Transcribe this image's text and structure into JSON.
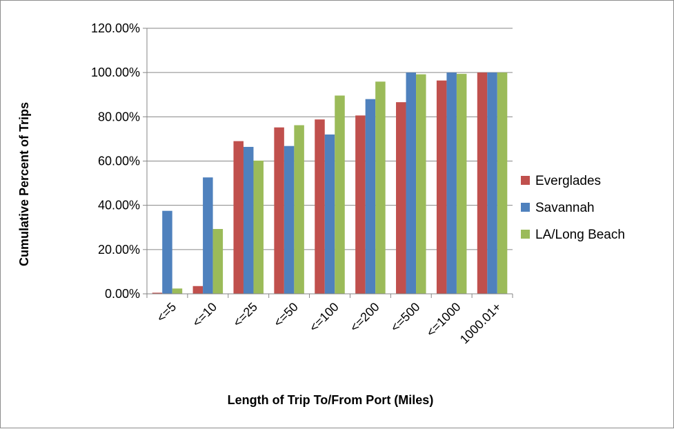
{
  "chart_data": {
    "type": "bar",
    "title": "",
    "xlabel": "Length of Trip To/From Port (Miles)",
    "ylabel": "Cumulative Percent of Trips",
    "categories": [
      "<=5",
      "<=10",
      "<=25",
      "<=50",
      "<=100",
      "<=200",
      "<=500",
      "<=1000",
      "1000.01+"
    ],
    "series": [
      {
        "name": "Everglades",
        "color": "#c0504d",
        "values": [
          0.5,
          3.5,
          69.0,
          75.2,
          78.8,
          80.6,
          86.6,
          96.4,
          100.0
        ]
      },
      {
        "name": "Savannah",
        "color": "#4f81bd",
        "values": [
          37.5,
          52.6,
          66.4,
          66.8,
          72.0,
          88.0,
          100.0,
          100.0,
          100.0
        ]
      },
      {
        "name": "LA/Long Beach",
        "color": "#9bbb59",
        "values": [
          2.4,
          29.3,
          60.2,
          76.2,
          89.6,
          95.9,
          99.2,
          99.4,
          100.0
        ]
      }
    ],
    "ylim": [
      0,
      120
    ],
    "yticks": [
      0,
      20,
      40,
      60,
      80,
      100,
      120
    ],
    "ytick_labels": [
      "0.00%",
      "20.00%",
      "40.00%",
      "60.00%",
      "80.00%",
      "100.00%",
      "120.00%"
    ],
    "grid": true,
    "legend_position": "right"
  }
}
